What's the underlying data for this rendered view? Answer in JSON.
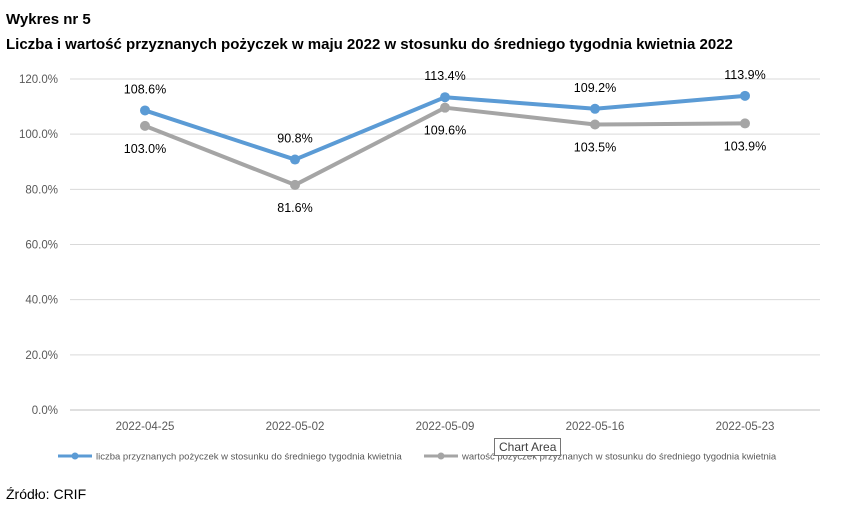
{
  "figure_label": "Wykres nr 5",
  "title": "Liczba i wartość przyznanych pożyczek w maju 2022 w stosunku do średniego tygodnia kwietnia 2022",
  "source": "Źródło: CRIF",
  "tooltip": "Chart Area",
  "chart_data": {
    "type": "line",
    "x": [
      "2022-04-25",
      "2022-05-02",
      "2022-05-09",
      "2022-05-16",
      "2022-05-23"
    ],
    "ylim": [
      0,
      120
    ],
    "yticks": [
      0,
      20,
      40,
      60,
      80,
      100,
      120
    ],
    "ytick_labels": [
      "0.0%",
      "20.0%",
      "40.0%",
      "60.0%",
      "80.0%",
      "100.0%",
      "120.0%"
    ],
    "grid": true,
    "legend_position": "bottom",
    "series": [
      {
        "name": "liczba przyznanych pożyczek w stosunku do średniego tygodnia kwietnia",
        "color": "#5B9BD5",
        "values": [
          108.6,
          90.8,
          113.4,
          109.2,
          113.9
        ],
        "labels": [
          "108.6%",
          "90.8%",
          "113.4%",
          "109.2%",
          "113.9%"
        ]
      },
      {
        "name": "wartość pożyczek przyznanych w stosunku do średniego tygodnia kwietnia",
        "color": "#A5A5A5",
        "values": [
          103.0,
          81.6,
          109.6,
          103.5,
          103.9
        ],
        "labels": [
          "103.0%",
          "81.6%",
          "109.6%",
          "103.5%",
          "103.9%"
        ]
      }
    ]
  }
}
